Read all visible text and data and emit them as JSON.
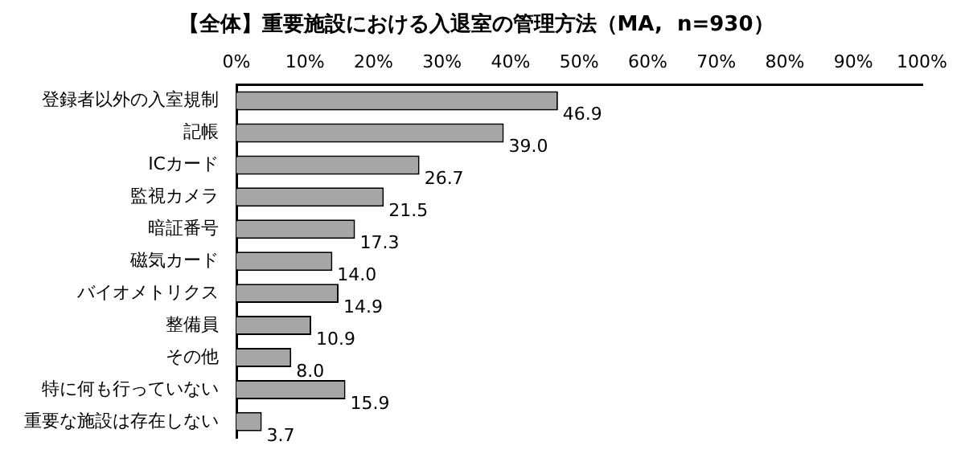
{
  "chart_data": {
    "type": "bar",
    "orientation": "horizontal",
    "title": "【全体】重要施設における入退室の管理方法（MA,  n=930）",
    "categories": [
      "登録者以外の入室規制",
      "記帳",
      "ICカード",
      "監視カメラ",
      "暗証番号",
      "磁気カード",
      "バイオメトリクス",
      "整備員",
      "その他",
      "特に何も行っていない",
      "重要な施設は存在しない"
    ],
    "values": [
      46.9,
      39.0,
      26.7,
      21.5,
      17.3,
      14.0,
      14.9,
      10.9,
      8.0,
      15.9,
      3.7
    ],
    "value_labels": [
      "46.9",
      "39.0",
      "26.7",
      "21.5",
      "17.3",
      "14.0",
      "14.9",
      "10.9",
      "8.0",
      "15.9",
      "3.7"
    ],
    "color": "#a6a6a6",
    "xlim": [
      0,
      100
    ],
    "xticks": [
      {
        "value": 0,
        "label": "0%"
      },
      {
        "value": 10,
        "label": "10%"
      },
      {
        "value": 20,
        "label": "20%"
      },
      {
        "value": 30,
        "label": "30%"
      },
      {
        "value": 40,
        "label": "40%"
      },
      {
        "value": 50,
        "label": "50%"
      },
      {
        "value": 60,
        "label": "60%"
      },
      {
        "value": 70,
        "label": "70%"
      },
      {
        "value": 80,
        "label": "80%"
      },
      {
        "value": 90,
        "label": "90%"
      },
      {
        "value": 100,
        "label": "100%"
      }
    ],
    "grid": false,
    "legend": false
  }
}
